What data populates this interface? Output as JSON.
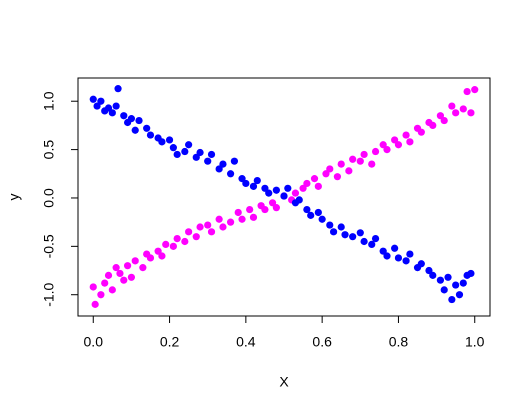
{
  "chart_data": {
    "type": "scatter",
    "xlabel": "X",
    "ylabel": "y",
    "xlim": [
      -0.04,
      1.04
    ],
    "ylim": [
      -1.22,
      1.24
    ],
    "xticks": [
      {
        "value": 0,
        "label": "0.0"
      },
      0.2,
      0.4,
      0.6,
      0.8,
      {
        "value": 1,
        "label": "1.0"
      }
    ],
    "yticks": [
      {
        "value": -1,
        "label": "-1.0"
      },
      -0.5,
      {
        "value": 0,
        "label": "0.0"
      },
      0.5,
      {
        "value": 1,
        "label": "1.0"
      }
    ],
    "series": [
      {
        "color": "#ff00ff",
        "x": [
          0.0,
          0.005,
          0.02,
          0.03,
          0.04,
          0.05,
          0.06,
          0.07,
          0.08,
          0.09,
          0.1,
          0.11,
          0.13,
          0.14,
          0.15,
          0.17,
          0.18,
          0.19,
          0.21,
          0.22,
          0.24,
          0.25,
          0.27,
          0.28,
          0.3,
          0.31,
          0.33,
          0.34,
          0.36,
          0.38,
          0.39,
          0.41,
          0.42,
          0.44,
          0.45,
          0.47,
          0.48,
          0.5,
          0.52,
          0.53,
          0.55,
          0.56,
          0.58,
          0.59,
          0.61,
          0.62,
          0.64,
          0.65,
          0.67,
          0.68,
          0.7,
          0.71,
          0.73,
          0.74,
          0.76,
          0.77,
          0.79,
          0.8,
          0.82,
          0.83,
          0.85,
          0.86,
          0.88,
          0.89,
          0.91,
          0.92,
          0.94,
          0.95,
          0.97,
          0.98,
          0.99,
          1.0
        ],
        "values": [
          -0.92,
          -1.1,
          -1.0,
          -0.88,
          -0.8,
          -0.95,
          -0.72,
          -0.78,
          -0.85,
          -0.7,
          -0.82,
          -0.65,
          -0.72,
          -0.58,
          -0.62,
          -0.55,
          -0.6,
          -0.48,
          -0.5,
          -0.42,
          -0.45,
          -0.35,
          -0.4,
          -0.3,
          -0.28,
          -0.35,
          -0.22,
          -0.3,
          -0.25,
          -0.15,
          -0.22,
          -0.12,
          -0.2,
          -0.08,
          -0.12,
          -0.05,
          -0.1,
          0.02,
          -0.02,
          0.05,
          0.1,
          0.15,
          0.2,
          0.12,
          0.25,
          0.3,
          0.22,
          0.35,
          0.28,
          0.4,
          0.38,
          0.45,
          0.35,
          0.48,
          0.55,
          0.5,
          0.6,
          0.55,
          0.65,
          0.58,
          0.72,
          0.68,
          0.78,
          0.75,
          0.85,
          0.8,
          0.95,
          0.88,
          0.92,
          1.1,
          0.88,
          1.12
        ]
      },
      {
        "color": "#0000ff",
        "x": [
          0.0,
          0.01,
          0.02,
          0.03,
          0.04,
          0.05,
          0.06,
          0.065,
          0.08,
          0.09,
          0.1,
          0.11,
          0.12,
          0.14,
          0.15,
          0.17,
          0.18,
          0.2,
          0.21,
          0.22,
          0.24,
          0.25,
          0.27,
          0.28,
          0.3,
          0.31,
          0.33,
          0.34,
          0.36,
          0.37,
          0.39,
          0.4,
          0.42,
          0.43,
          0.45,
          0.46,
          0.48,
          0.5,
          0.51,
          0.53,
          0.54,
          0.56,
          0.57,
          0.59,
          0.6,
          0.62,
          0.63,
          0.65,
          0.66,
          0.68,
          0.7,
          0.71,
          0.73,
          0.74,
          0.76,
          0.77,
          0.79,
          0.8,
          0.82,
          0.83,
          0.85,
          0.86,
          0.88,
          0.89,
          0.91,
          0.92,
          0.93,
          0.94,
          0.95,
          0.96,
          0.97,
          0.98,
          0.99
        ],
        "values": [
          1.02,
          0.95,
          1.0,
          0.9,
          0.93,
          0.88,
          0.95,
          1.13,
          0.85,
          0.78,
          0.82,
          0.7,
          0.8,
          0.72,
          0.65,
          0.62,
          0.58,
          0.6,
          0.52,
          0.45,
          0.48,
          0.55,
          0.42,
          0.47,
          0.38,
          0.45,
          0.3,
          0.35,
          0.25,
          0.38,
          0.2,
          0.15,
          0.12,
          0.18,
          0.1,
          0.05,
          0.08,
          0.02,
          0.1,
          -0.05,
          -0.02,
          -0.12,
          -0.18,
          -0.15,
          -0.22,
          -0.28,
          -0.35,
          -0.3,
          -0.38,
          -0.4,
          -0.36,
          -0.45,
          -0.48,
          -0.42,
          -0.55,
          -0.6,
          -0.52,
          -0.62,
          -0.65,
          -0.58,
          -0.72,
          -0.68,
          -0.75,
          -0.8,
          -0.85,
          -0.95,
          -0.82,
          -1.05,
          -0.9,
          -1.0,
          -0.88,
          -0.8,
          -0.78
        ]
      }
    ]
  }
}
